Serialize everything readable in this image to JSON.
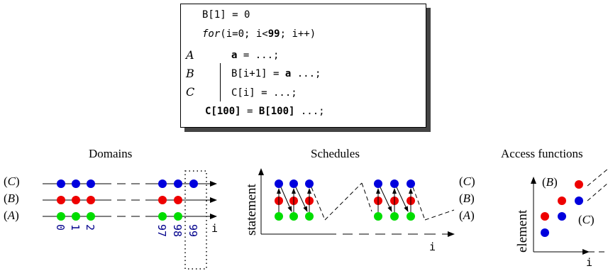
{
  "code": {
    "line1": "B[1] = 0",
    "for_kw": "for",
    "for_rest": "(i=0; i<",
    "for_bound": "99",
    "for_end": "; i++)",
    "stmtA_var": "a",
    "stmtA_rest": " = ...;",
    "stmtB_pre": "B[i+1] = ",
    "stmtB_var": "a",
    "stmtB_rest": " ...;",
    "stmtC": "C[i] = ...;",
    "last_bold1": "C[100]",
    "last_mid": " = ",
    "last_bold2": "B[100]",
    "last_rest": " ...;",
    "labelA": "A",
    "labelB": "B",
    "labelC": "C"
  },
  "domains": {
    "title": "Domains",
    "rows": [
      "(C)",
      "(B)",
      "(A)"
    ],
    "ticks": [
      "0",
      "1",
      "2",
      "97",
      "98",
      "99"
    ],
    "axis_label": "i"
  },
  "schedules": {
    "title": "Schedules",
    "ylabel": "statement",
    "xlabel": "i",
    "rows": [
      "(C)",
      "(B)",
      "(A)"
    ]
  },
  "access": {
    "title": "Access functions",
    "ylabel": "element",
    "xlabel": "i",
    "labelB": "(B)",
    "labelC": "(C)"
  },
  "colors": {
    "red": "#ee0000",
    "green": "#00dd00",
    "blue": "#0000dd",
    "tick": "#00008b"
  }
}
